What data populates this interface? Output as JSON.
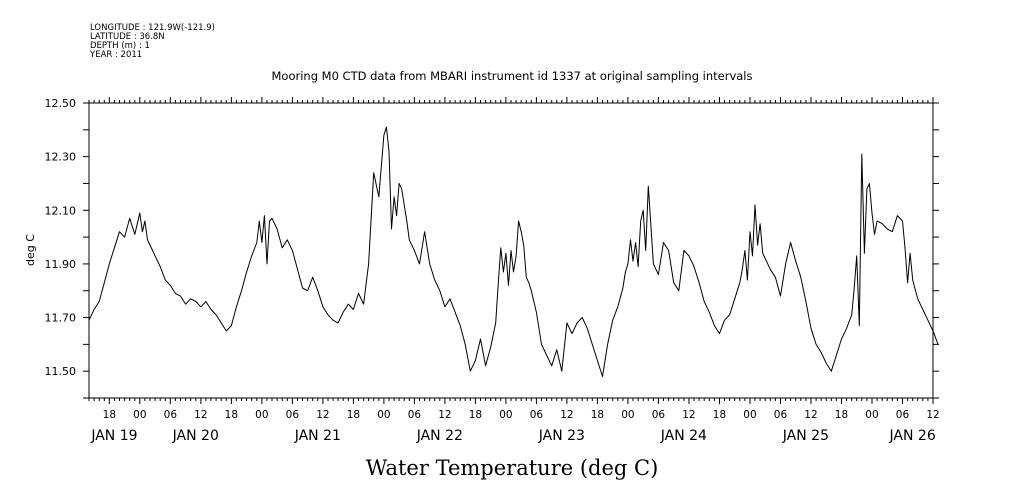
{
  "header": {
    "longitude": "LONGITUDE : 121.9W(-121.9)",
    "latitude": "LATITUDE : 36.8N",
    "depth": "DEPTH (m) : 1",
    "year": "YEAR : 2011"
  },
  "chart_data": {
    "type": "line",
    "title": "Mooring M0 CTD data from MBARI instrument id 1337 at original sampling intervals",
    "xlabel": "Water Temperature (deg C)",
    "ylabel": "deg C",
    "ylim": [
      11.4,
      12.5
    ],
    "yticks": [
      11.5,
      11.7,
      11.9,
      12.1,
      12.3,
      12.5
    ],
    "ytick_labels": [
      "11.50",
      "11.70",
      "11.90",
      "12.10",
      "12.30",
      "12.50"
    ],
    "x_units": "hours since 2011-01-19 00:00",
    "xlim": [
      -10,
      156
    ],
    "hour_ticks": [
      {
        "x": -6,
        "label": "18"
      },
      {
        "x": 0,
        "label": "00"
      },
      {
        "x": 6,
        "label": "06"
      },
      {
        "x": 12,
        "label": "12"
      },
      {
        "x": 18,
        "label": "18"
      },
      {
        "x": 24,
        "label": "00"
      },
      {
        "x": 30,
        "label": "06"
      },
      {
        "x": 36,
        "label": "12"
      },
      {
        "x": 42,
        "label": "18"
      },
      {
        "x": 48,
        "label": "00"
      },
      {
        "x": 54,
        "label": "06"
      },
      {
        "x": 60,
        "label": "12"
      },
      {
        "x": 66,
        "label": "18"
      },
      {
        "x": 72,
        "label": "00"
      },
      {
        "x": 78,
        "label": "06"
      },
      {
        "x": 84,
        "label": "12"
      },
      {
        "x": 90,
        "label": "18"
      },
      {
        "x": 96,
        "label": "00"
      },
      {
        "x": 102,
        "label": "06"
      },
      {
        "x": 108,
        "label": "12"
      },
      {
        "x": 114,
        "label": "18"
      },
      {
        "x": 120,
        "label": "00"
      },
      {
        "x": 126,
        "label": "06"
      },
      {
        "x": 132,
        "label": "12"
      },
      {
        "x": 138,
        "label": "18"
      },
      {
        "x": 144,
        "label": "00"
      },
      {
        "x": 150,
        "label": "06"
      },
      {
        "x": 156,
        "label": "12"
      }
    ],
    "date_labels": [
      {
        "x": -5,
        "label": "JAN 19"
      },
      {
        "x": 11,
        "label": "JAN 20"
      },
      {
        "x": 35,
        "label": "JAN 21"
      },
      {
        "x": 59,
        "label": "JAN 22"
      },
      {
        "x": 83,
        "label": "JAN 23"
      },
      {
        "x": 107,
        "label": "JAN 24"
      },
      {
        "x": 131,
        "label": "JAN 25"
      },
      {
        "x": 152,
        "label": "JAN 26"
      }
    ],
    "series": [
      {
        "color": "#000000",
        "x": [
          -10,
          -9,
          -8,
          -7,
          -6,
          -5,
          -4,
          -3,
          -2,
          -1,
          0,
          0.5,
          1,
          1.5,
          2,
          2.5,
          3,
          4,
          5,
          6,
          7,
          8,
          9,
          10,
          11,
          12,
          13,
          14,
          15,
          16,
          17,
          18,
          19,
          20,
          21,
          22,
          23,
          23.5,
          24,
          24.5,
          25,
          25.5,
          26,
          27,
          28,
          29,
          30,
          31,
          32,
          33,
          34,
          35,
          36,
          37,
          38,
          39,
          40,
          41,
          42,
          43,
          44,
          45,
          46,
          47,
          48,
          48.5,
          49,
          49.5,
          50,
          50.5,
          51,
          51.5,
          52,
          52.5,
          53,
          54,
          55,
          56,
          57,
          58,
          59,
          60,
          61,
          62,
          63,
          64,
          65,
          66,
          67,
          68,
          69,
          70,
          70.5,
          71,
          71.5,
          72,
          72.5,
          73,
          73.5,
          74,
          74.5,
          75,
          75.5,
          76,
          76.5,
          77,
          78,
          79,
          80,
          81,
          82,
          83,
          84,
          85,
          86,
          87,
          88,
          89,
          90,
          91,
          92,
          93,
          94,
          95,
          95.5,
          96,
          96.5,
          97,
          97.5,
          98,
          98.5,
          99,
          99.5,
          100,
          101,
          102,
          103,
          104,
          105,
          106,
          107,
          108,
          109,
          110,
          111,
          112,
          113,
          114,
          115,
          116,
          117,
          118,
          118.5,
          119,
          119.5,
          120,
          120.5,
          121,
          121.5,
          122,
          122.5,
          123,
          124,
          125,
          126,
          127,
          128,
          129,
          130,
          131,
          132,
          133,
          134,
          135,
          136,
          137,
          138,
          139,
          140,
          140.5,
          141,
          141.5,
          142,
          142.5,
          143,
          143.5,
          144,
          144.5,
          145,
          146,
          147,
          148,
          149,
          150,
          150.5,
          151,
          151.5,
          152,
          153,
          154,
          155,
          156,
          157
        ],
        "y": [
          11.69,
          11.73,
          11.76,
          11.83,
          11.9,
          11.96,
          12.02,
          12.0,
          12.07,
          12.01,
          12.09,
          12.02,
          12.06,
          11.99,
          11.97,
          11.95,
          11.93,
          11.89,
          11.84,
          11.82,
          11.79,
          11.78,
          11.75,
          11.77,
          11.76,
          11.74,
          11.76,
          11.73,
          11.71,
          11.68,
          11.65,
          11.67,
          11.74,
          11.8,
          11.87,
          11.93,
          11.98,
          12.06,
          11.98,
          12.08,
          11.9,
          12.06,
          12.07,
          12.03,
          11.96,
          11.99,
          11.95,
          11.88,
          11.81,
          11.8,
          11.85,
          11.8,
          11.74,
          11.71,
          11.69,
          11.68,
          11.72,
          11.75,
          11.73,
          11.79,
          11.75,
          11.9,
          12.24,
          12.15,
          12.38,
          12.41,
          12.32,
          12.03,
          12.15,
          12.08,
          12.2,
          12.18,
          12.12,
          12.06,
          11.99,
          11.95,
          11.9,
          12.02,
          11.9,
          11.84,
          11.8,
          11.74,
          11.77,
          11.72,
          11.67,
          11.6,
          11.5,
          11.54,
          11.62,
          11.52,
          11.59,
          11.68,
          11.83,
          11.96,
          11.87,
          11.94,
          11.82,
          11.95,
          11.87,
          11.93,
          12.06,
          12.02,
          11.97,
          11.85,
          11.83,
          11.8,
          11.72,
          11.6,
          11.56,
          11.52,
          11.58,
          11.5,
          11.68,
          11.64,
          11.68,
          11.7,
          11.66,
          11.6,
          11.54,
          11.48,
          11.6,
          11.69,
          11.74,
          11.81,
          11.87,
          11.9,
          11.99,
          11.91,
          11.98,
          11.89,
          12.06,
          12.1,
          11.95,
          12.19,
          11.9,
          11.86,
          11.98,
          11.95,
          11.83,
          11.8,
          11.95,
          11.93,
          11.89,
          11.83,
          11.76,
          11.72,
          11.67,
          11.64,
          11.69,
          11.71,
          11.77,
          11.83,
          11.88,
          11.95,
          11.84,
          12.02,
          11.93,
          12.12,
          11.97,
          12.05,
          11.94,
          11.92,
          11.88,
          11.85,
          11.78,
          11.9,
          11.98,
          11.91,
          11.85,
          11.76,
          11.66,
          11.6,
          11.57,
          11.53,
          11.5,
          11.56,
          11.62,
          11.66,
          11.71,
          11.81,
          11.93,
          11.67,
          12.31,
          11.94,
          12.18,
          12.2,
          12.09,
          12.01,
          12.06,
          12.05,
          12.03,
          12.02,
          12.08,
          12.06,
          11.96,
          11.83,
          11.94,
          11.84,
          11.77,
          11.73,
          11.69,
          11.65,
          11.6
        ]
      }
    ]
  }
}
